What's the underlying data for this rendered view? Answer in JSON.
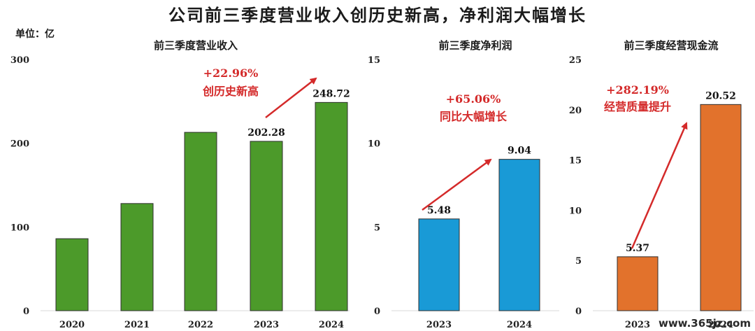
{
  "title": "公司前三季度营业收入创历史新高，净利润大幅增长",
  "unit_label": "单位：亿",
  "watermark": "www.365jz.com",
  "colors": {
    "revenue": "#4c9a2a",
    "profit": "#199ad6",
    "cashflow": "#e2722c",
    "annotation": "#d42a2a",
    "grid": "#d9d9d9"
  },
  "chart_data": [
    {
      "type": "bar",
      "title": "前三季度营业收入",
      "categories": [
        "2020",
        "2021",
        "2022",
        "2023",
        "2024"
      ],
      "values": [
        86,
        128,
        213,
        202.28,
        248.72
      ],
      "data_labels": [
        "",
        "",
        "",
        "202.28",
        "248.72"
      ],
      "ylim": [
        0,
        300
      ],
      "yticks": [
        0,
        100,
        200,
        300
      ],
      "grid": false,
      "annotation": [
        "+22.96%",
        "创历史新高"
      ]
    },
    {
      "type": "bar",
      "title": "前三季度净利润",
      "categories": [
        "2023",
        "2024"
      ],
      "values": [
        5.48,
        9.04
      ],
      "data_labels": [
        "5.48",
        "9.04"
      ],
      "ylim": [
        0,
        15
      ],
      "yticks": [
        0,
        5,
        10,
        15
      ],
      "grid": false,
      "annotation": [
        "+65.06%",
        "同比大幅增长"
      ]
    },
    {
      "type": "bar",
      "title": "前三季度经营现金流",
      "categories": [
        "2023",
        "2024"
      ],
      "values": [
        5.37,
        20.52
      ],
      "data_labels": [
        "5.37",
        "20.52"
      ],
      "ylim": [
        0,
        25
      ],
      "yticks": [
        0,
        5,
        10,
        15,
        20,
        25
      ],
      "grid": false,
      "annotation": [
        "+282.19%",
        "经营质量提升"
      ]
    }
  ]
}
